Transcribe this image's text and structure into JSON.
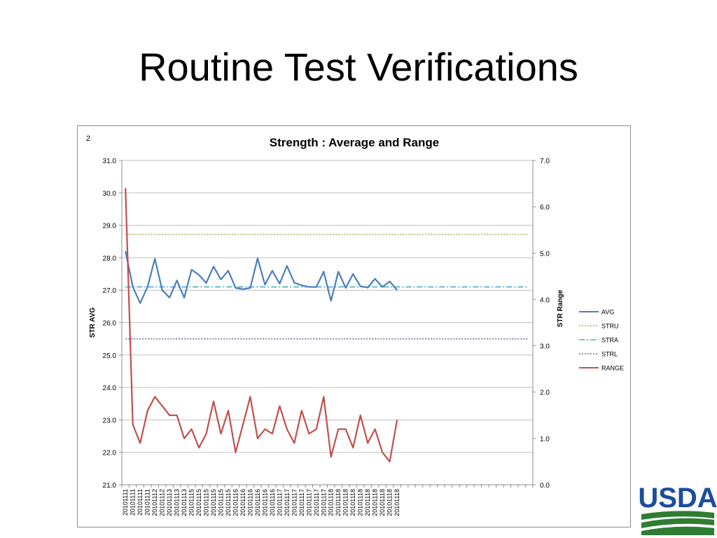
{
  "slide": {
    "title": "Routine Test Verifications"
  },
  "chart_data": {
    "type": "line",
    "corner_label": "2",
    "title": "Strength :  Average and Range",
    "ylabel": "STR  AVG",
    "y2label": "STR  Range",
    "ylim": [
      21.0,
      31.0
    ],
    "y2lim": [
      0.0,
      7.0
    ],
    "y_ticks": [
      "21.0",
      "22.0",
      "23.0",
      "24.0",
      "25.0",
      "26.0",
      "27.0",
      "28.0",
      "29.0",
      "30.0",
      "31.0"
    ],
    "y2_ticks": [
      "0.0",
      "1.0",
      "2.0",
      "3.0",
      "4.0",
      "5.0",
      "6.0",
      "7.0"
    ],
    "grid": "horizontal",
    "legend_position": "right",
    "x": [
      "20101111",
      "20101111",
      "20101111",
      "20101111",
      "20101112",
      "20101112",
      "20101113",
      "20101113",
      "20101113",
      "20101115",
      "20101115",
      "20101115",
      "20101115",
      "20101115",
      "20101115",
      "20101116",
      "20101116",
      "20101116",
      "20101116",
      "20101116",
      "20101116",
      "20101117",
      "20101117",
      "20101117",
      "20101117",
      "20101117",
      "20101117",
      "20101117",
      "20101118",
      "20101118",
      "20101118",
      "20101118",
      "20101118",
      "20101118",
      "20101118",
      "20101118",
      "20101118",
      "20101118"
    ],
    "series": [
      {
        "name": "AVG",
        "axis": "left",
        "color": "#4a7ebb",
        "style": "solid",
        "values": [
          28.2,
          27.1,
          26.6,
          27.1,
          27.97,
          27.0,
          26.77,
          27.3,
          26.77,
          27.63,
          27.47,
          27.22,
          27.73,
          27.33,
          27.6,
          27.07,
          27.03,
          27.07,
          27.98,
          27.17,
          27.6,
          27.2,
          27.75,
          27.23,
          27.15,
          27.1,
          27.1,
          27.57,
          26.67,
          27.57,
          27.07,
          27.5,
          27.12,
          27.08,
          27.35,
          27.1,
          27.27,
          27.0
        ]
      },
      {
        "name": "STRU",
        "axis": "left",
        "color": "#9bbb59",
        "style": "dotted",
        "constant": 28.72
      },
      {
        "name": "STRA",
        "axis": "left",
        "color": "#4bacc6",
        "style": "dashdot",
        "constant": 27.1
      },
      {
        "name": "STRL",
        "axis": "left",
        "color": "#8064a2",
        "style": "dotted",
        "constant": 25.5
      },
      {
        "name": "RANGE",
        "axis": "right",
        "color": "#c0504d",
        "style": "solid",
        "values": [
          6.4,
          1.3,
          0.9,
          1.6,
          1.9,
          1.7,
          1.5,
          1.5,
          1.0,
          1.2,
          0.8,
          1.1,
          1.8,
          1.1,
          1.6,
          0.7,
          1.3,
          1.9,
          1.0,
          1.2,
          1.1,
          1.7,
          1.2,
          0.9,
          1.6,
          1.1,
          1.2,
          1.9,
          0.6,
          1.2,
          1.2,
          0.8,
          1.5,
          0.9,
          1.2,
          0.7,
          0.5,
          1.4
        ]
      }
    ]
  },
  "logo": {
    "text": "USDA",
    "color": "#1b4d9c",
    "green": "#2e7d32"
  }
}
